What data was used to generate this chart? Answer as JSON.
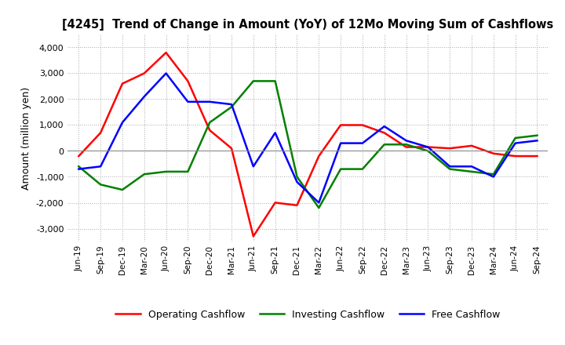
{
  "title": "[4245]  Trend of Change in Amount (YoY) of 12Mo Moving Sum of Cashflows",
  "ylabel": "Amount (million yen)",
  "xlabels": [
    "Jun-19",
    "Sep-19",
    "Dec-19",
    "Mar-20",
    "Jun-20",
    "Sep-20",
    "Dec-20",
    "Mar-21",
    "Jun-21",
    "Sep-21",
    "Dec-21",
    "Mar-22",
    "Jun-22",
    "Sep-22",
    "Dec-22",
    "Mar-23",
    "Jun-23",
    "Sep-23",
    "Dec-23",
    "Mar-24",
    "Jun-24",
    "Sep-24"
  ],
  "operating": [
    -200,
    700,
    2600,
    3000,
    3800,
    2700,
    800,
    100,
    -3300,
    -2000,
    -2100,
    -200,
    1000,
    1000,
    700,
    150,
    150,
    100,
    200,
    -100,
    -200,
    -200
  ],
  "investing": [
    -600,
    -1300,
    -1500,
    -900,
    -800,
    -800,
    1100,
    1700,
    2700,
    2700,
    -1000,
    -2200,
    -700,
    -700,
    250,
    250,
    0,
    -700,
    -800,
    -900,
    500,
    600
  ],
  "free": [
    -700,
    -600,
    1100,
    2100,
    3000,
    1900,
    1900,
    1800,
    -600,
    700,
    -1200,
    -2000,
    300,
    300,
    950,
    400,
    150,
    -600,
    -600,
    -1000,
    300,
    400
  ],
  "ylim": [
    -3500,
    4500
  ],
  "yticks": [
    -3000,
    -2000,
    -1000,
    0,
    1000,
    2000,
    3000,
    4000
  ],
  "colors": {
    "operating": "#FF0000",
    "investing": "#008000",
    "free": "#0000FF"
  },
  "legend_labels": [
    "Operating Cashflow",
    "Investing Cashflow",
    "Free Cashflow"
  ],
  "bg_color": "#FFFFFF",
  "grid_color": "#AAAAAA"
}
